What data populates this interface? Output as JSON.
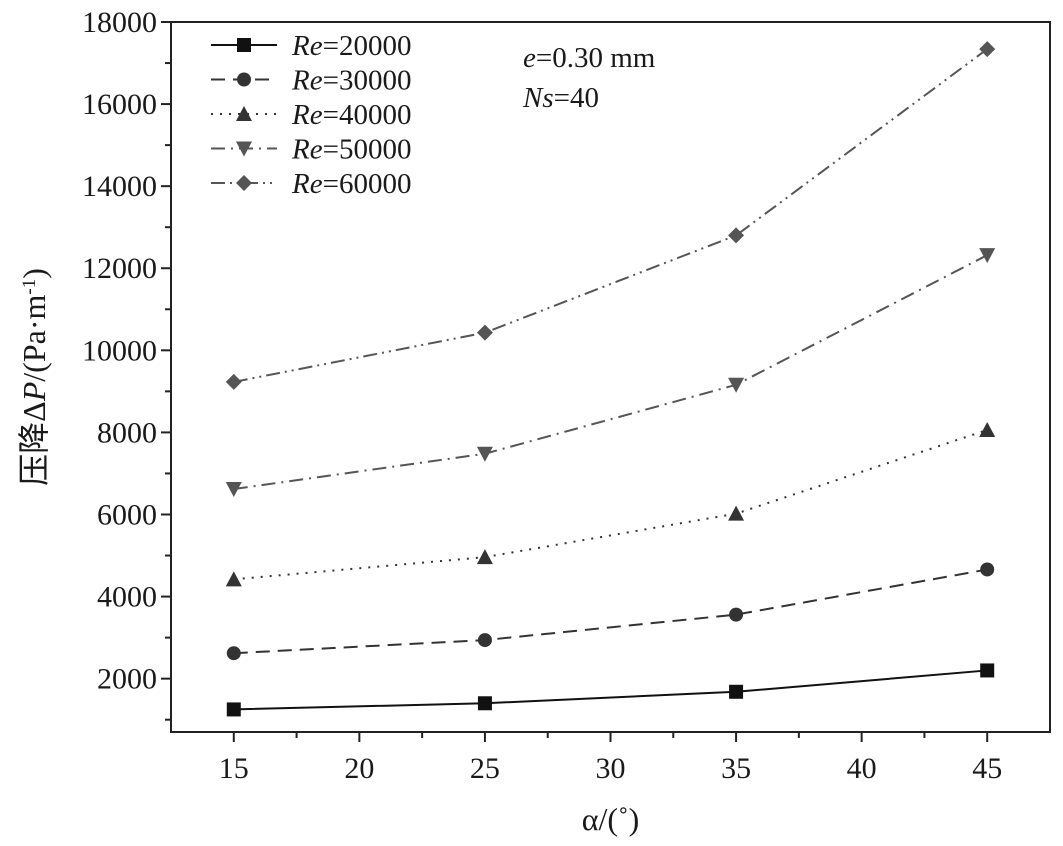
{
  "chart_data": {
    "type": "line",
    "xlabel": "α/(˚)",
    "ylabel": "压降ΔP/(Pa·m⁻¹)",
    "ylabel_parts": {
      "prefix": "压降Δ",
      "italic": "P",
      "mid": "/(Pa·m",
      "sup": "-1",
      "suffix": ")"
    },
    "x": [
      15,
      25,
      35,
      45
    ],
    "xlim": [
      12.5,
      47.5
    ],
    "ylim": [
      700,
      18000
    ],
    "xticks": [
      15,
      20,
      25,
      30,
      35,
      40,
      45
    ],
    "yticks": [
      2000,
      4000,
      6000,
      8000,
      10000,
      12000,
      14000,
      16000,
      18000
    ],
    "grid": false,
    "legend_position": "top-left",
    "series": [
      {
        "name": "Re=20000",
        "name_italic": "Re",
        "name_rest": "=20000",
        "values": [
          1250,
          1400,
          1680,
          2200
        ],
        "marker": "square",
        "dash": "",
        "color": "#111111"
      },
      {
        "name": "Re=30000",
        "name_italic": "Re",
        "name_rest": "=30000",
        "values": [
          2620,
          2940,
          3560,
          4660
        ],
        "marker": "circle",
        "dash": "14 8",
        "color": "#333333"
      },
      {
        "name": "Re=40000",
        "name_italic": "Re",
        "name_rest": "=40000",
        "values": [
          4420,
          4960,
          6020,
          8060
        ],
        "marker": "triangle-up",
        "dash": "2 7",
        "color": "#333333"
      },
      {
        "name": "Re=50000",
        "name_italic": "Re",
        "name_rest": "=50000",
        "values": [
          6620,
          7480,
          9160,
          12320
        ],
        "marker": "triangle-down",
        "dash": "14 6 2 6",
        "color": "#555555"
      },
      {
        "name": "Re=60000",
        "name_italic": "Re",
        "name_rest": "=60000",
        "values": [
          9230,
          10430,
          12800,
          17340
        ],
        "marker": "diamond",
        "dash": "14 5 2 5 2 5",
        "color": "#555555"
      }
    ],
    "annotations": [
      {
        "italic": "e",
        "rest": "=0.30 mm"
      },
      {
        "italic": "Ns",
        "rest": "=40"
      }
    ]
  }
}
